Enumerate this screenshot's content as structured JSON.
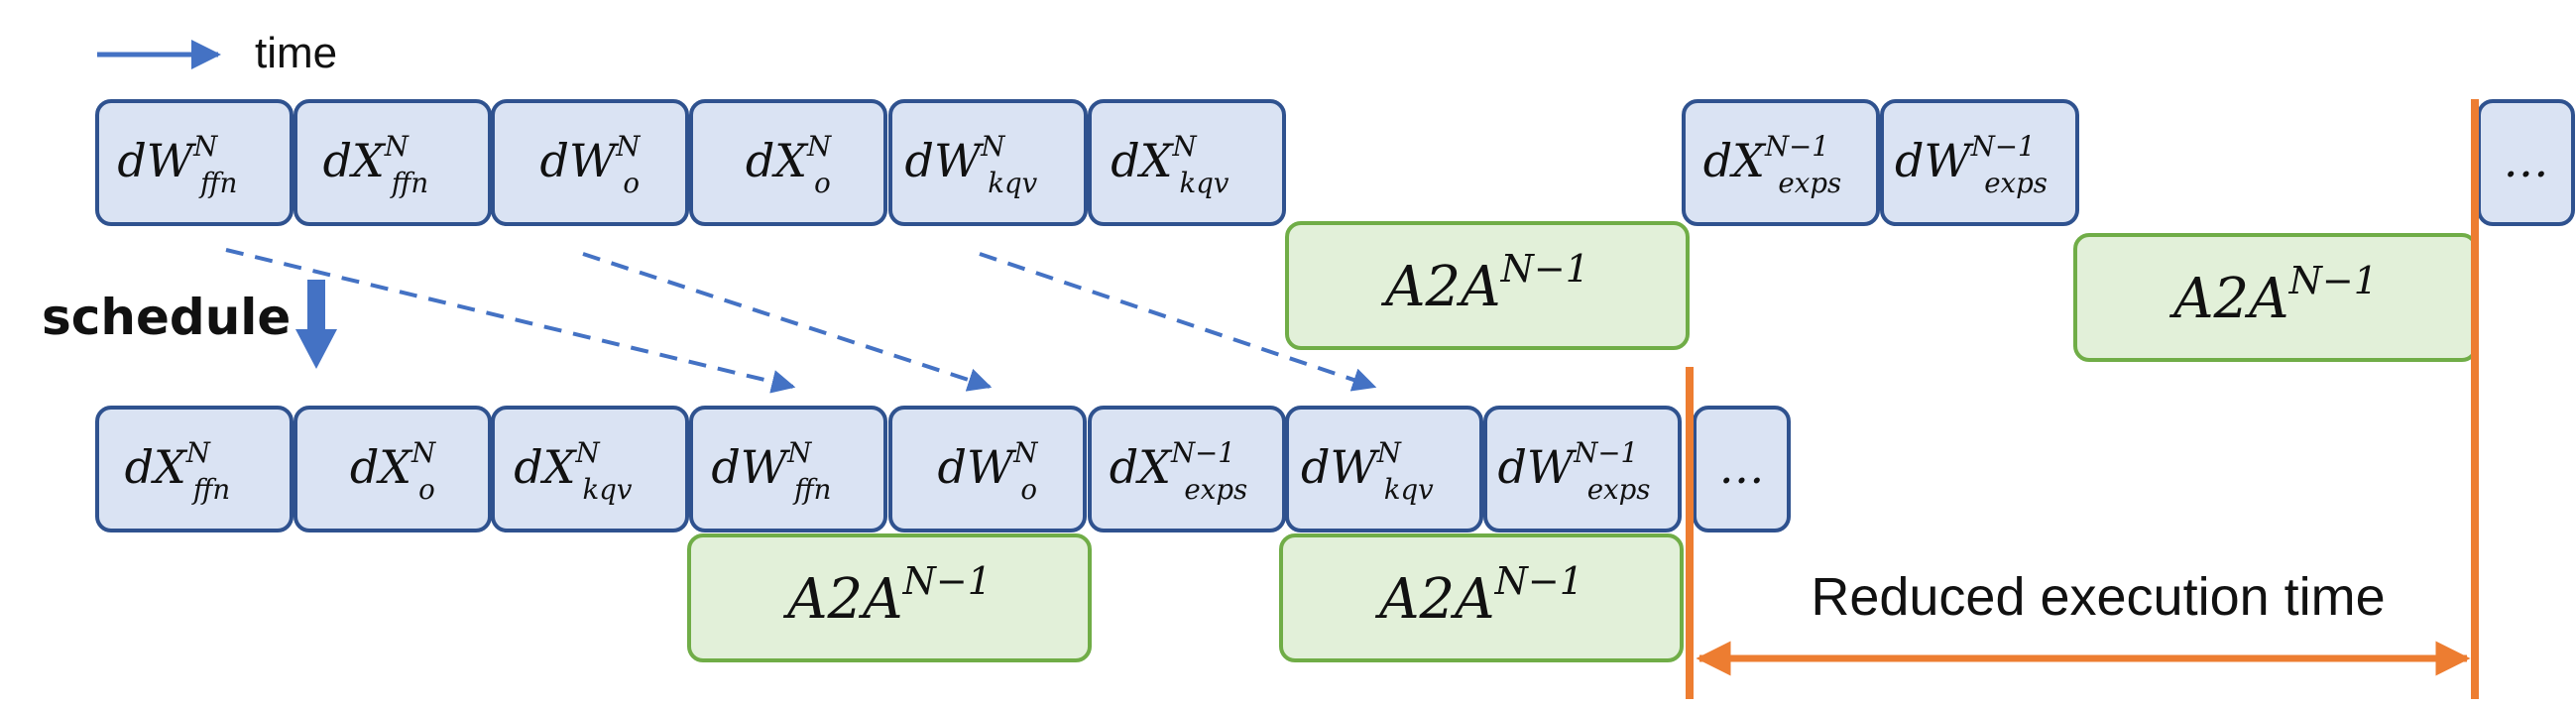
{
  "legend": {
    "arrow_label": "time"
  },
  "schedule_label": "schedule",
  "reduced_label": "Reduced execution time",
  "colors": {
    "op_fill": "#dae3f3",
    "op_border": "#2f528f",
    "a2a_fill": "#e2f0d9",
    "a2a_border": "#70ad47",
    "arrow_blue": "#4472c4",
    "orange": "#ed7d31"
  },
  "top_row": [
    {
      "base": "dW",
      "sup": "N",
      "sub": "ffn"
    },
    {
      "base": "dX",
      "sup": "N",
      "sub": "ffn"
    },
    {
      "base": "dW",
      "sup": "N",
      "sub": "o"
    },
    {
      "base": "dX",
      "sup": "N",
      "sub": "o"
    },
    {
      "base": "dW",
      "sup": "N",
      "sub": "kqv"
    },
    {
      "base": "dX",
      "sup": "N",
      "sub": "kqv"
    },
    {
      "base": "dX",
      "sup": "N−1",
      "sub": "exps"
    },
    {
      "base": "dW",
      "sup": "N−1",
      "sub": "exps"
    },
    {
      "base": "…",
      "sup": "",
      "sub": ""
    }
  ],
  "bottom_row": [
    {
      "base": "dX",
      "sup": "N",
      "sub": "ffn"
    },
    {
      "base": "dX",
      "sup": "N",
      "sub": "o"
    },
    {
      "base": "dX",
      "sup": "N",
      "sub": "kqv"
    },
    {
      "base": "dW",
      "sup": "N",
      "sub": "ffn"
    },
    {
      "base": "dW",
      "sup": "N",
      "sub": "o"
    },
    {
      "base": "dX",
      "sup": "N−1",
      "sub": "exps"
    },
    {
      "base": "dW",
      "sup": "N",
      "sub": "kqv"
    },
    {
      "base": "dW",
      "sup": "N−1",
      "sub": "exps"
    },
    {
      "base": "…",
      "sup": "",
      "sub": ""
    }
  ],
  "a2a": [
    {
      "base": "A2A",
      "sup": "N−1"
    },
    {
      "base": "A2A",
      "sup": "N−1"
    },
    {
      "base": "A2A",
      "sup": "N−1"
    },
    {
      "base": "A2A",
      "sup": "N−1"
    }
  ]
}
